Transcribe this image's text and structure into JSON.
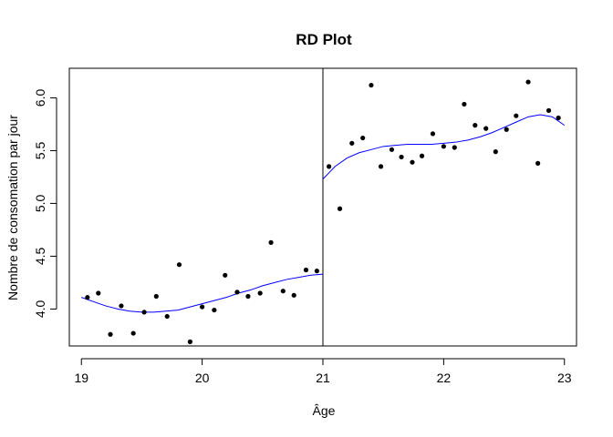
{
  "chart_data": {
    "type": "scatter",
    "title": "RD Plot",
    "xlabel": "Âge",
    "ylabel": "Nombre de consomation par jour",
    "xlim": [
      18.9,
      23.1
    ],
    "ylim": [
      3.65,
      6.28
    ],
    "x_ticks": [
      19,
      20,
      21,
      22,
      23
    ],
    "y_ticks": [
      4.0,
      4.5,
      5.0,
      5.5,
      6.0
    ],
    "y_tick_labels": [
      "4.0",
      "4.5",
      "5.0",
      "5.5",
      "6.0"
    ],
    "cutoff": 21,
    "grid": false,
    "fit_color": "#0000ff",
    "points": [
      [
        19.05,
        4.11
      ],
      [
        19.14,
        4.15
      ],
      [
        19.24,
        3.76
      ],
      [
        19.33,
        4.03
      ],
      [
        19.43,
        3.77
      ],
      [
        19.52,
        3.97
      ],
      [
        19.62,
        4.12
      ],
      [
        19.71,
        3.93
      ],
      [
        19.81,
        4.42
      ],
      [
        19.9,
        3.69
      ],
      [
        20.0,
        4.02
      ],
      [
        20.1,
        3.99
      ],
      [
        20.19,
        4.32
      ],
      [
        20.29,
        4.16
      ],
      [
        20.38,
        4.12
      ],
      [
        20.48,
        4.15
      ],
      [
        20.57,
        4.63
      ],
      [
        20.67,
        4.17
      ],
      [
        20.76,
        4.13
      ],
      [
        20.86,
        4.37
      ],
      [
        20.95,
        4.36
      ],
      [
        21.05,
        5.35
      ],
      [
        21.14,
        4.95
      ],
      [
        21.24,
        5.57
      ],
      [
        21.33,
        5.62
      ],
      [
        21.4,
        6.12
      ],
      [
        21.48,
        5.35
      ],
      [
        21.57,
        5.51
      ],
      [
        21.65,
        5.44
      ],
      [
        21.74,
        5.39
      ],
      [
        21.82,
        5.45
      ],
      [
        21.91,
        5.66
      ],
      [
        22.0,
        5.54
      ],
      [
        22.09,
        5.53
      ],
      [
        22.17,
        5.94
      ],
      [
        22.26,
        5.74
      ],
      [
        22.35,
        5.71
      ],
      [
        22.43,
        5.49
      ],
      [
        22.52,
        5.7
      ],
      [
        22.6,
        5.83
      ],
      [
        22.7,
        6.15
      ],
      [
        22.78,
        5.38
      ],
      [
        22.87,
        5.88
      ],
      [
        22.95,
        5.81
      ]
    ],
    "fit_left": [
      [
        19.0,
        4.11
      ],
      [
        19.1,
        4.07
      ],
      [
        19.2,
        4.03
      ],
      [
        19.3,
        4.0
      ],
      [
        19.4,
        3.98
      ],
      [
        19.5,
        3.97
      ],
      [
        19.6,
        3.97
      ],
      [
        19.7,
        3.98
      ],
      [
        19.8,
        3.99
      ],
      [
        19.9,
        4.02
      ],
      [
        20.0,
        4.05
      ],
      [
        20.1,
        4.08
      ],
      [
        20.2,
        4.11
      ],
      [
        20.3,
        4.15
      ],
      [
        20.4,
        4.18
      ],
      [
        20.5,
        4.22
      ],
      [
        20.6,
        4.25
      ],
      [
        20.7,
        4.28
      ],
      [
        20.8,
        4.3
      ],
      [
        20.9,
        4.32
      ],
      [
        21.0,
        4.33
      ]
    ],
    "fit_right": [
      [
        21.0,
        5.23
      ],
      [
        21.05,
        5.29
      ],
      [
        21.1,
        5.35
      ],
      [
        21.2,
        5.43
      ],
      [
        21.3,
        5.48
      ],
      [
        21.4,
        5.51
      ],
      [
        21.5,
        5.54
      ],
      [
        21.6,
        5.55
      ],
      [
        21.7,
        5.56
      ],
      [
        21.8,
        5.56
      ],
      [
        21.9,
        5.56
      ],
      [
        22.0,
        5.57
      ],
      [
        22.1,
        5.58
      ],
      [
        22.2,
        5.6
      ],
      [
        22.3,
        5.63
      ],
      [
        22.4,
        5.67
      ],
      [
        22.5,
        5.72
      ],
      [
        22.6,
        5.77
      ],
      [
        22.7,
        5.82
      ],
      [
        22.8,
        5.84
      ],
      [
        22.9,
        5.82
      ],
      [
        23.0,
        5.74
      ]
    ]
  }
}
